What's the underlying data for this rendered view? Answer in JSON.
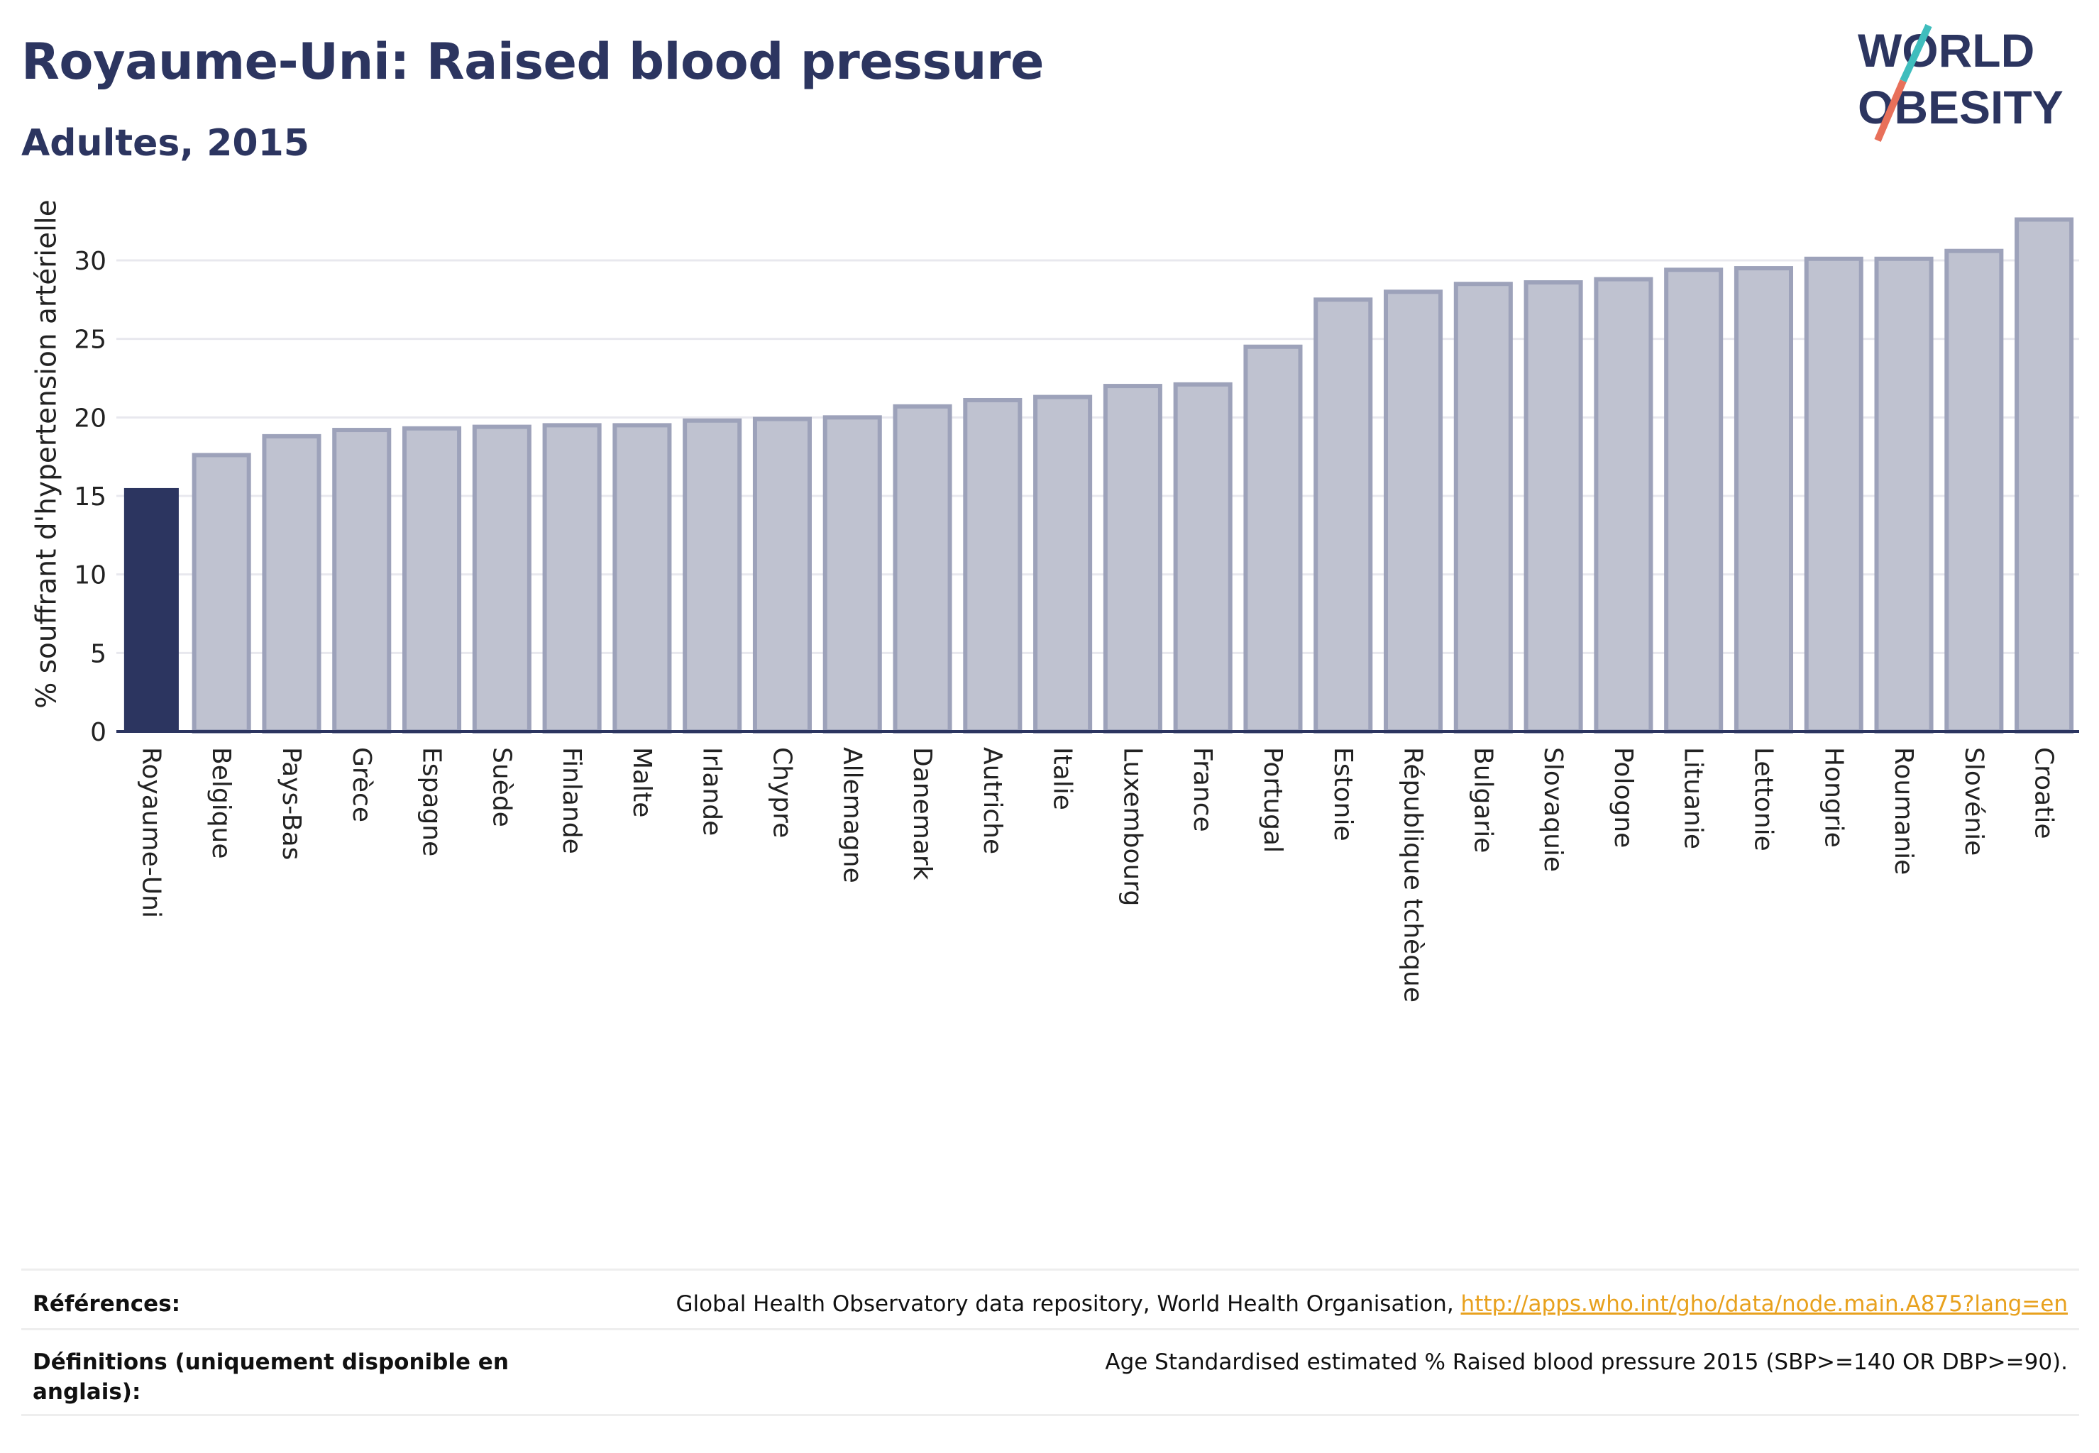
{
  "header": {
    "title": "Royaume-Uni: Raised blood pressure",
    "subtitle": "Adultes, 2015"
  },
  "logo": {
    "line1": "WORLD",
    "line2": "OBESITY"
  },
  "colors": {
    "highlight_bar": "#2c3560",
    "other_bar_fill": "#bfc2d0",
    "other_bar_stroke": "#9da2ba",
    "grid": "#e8e8ee",
    "axis": "#2c3560",
    "logo_teal": "#3fbdbd",
    "logo_coral": "#e8705a"
  },
  "chart_data": {
    "type": "bar",
    "ylabel": "% souffrant d'hypertension artérielle",
    "xlabel": "",
    "ylim": [
      0,
      34
    ],
    "yticks": [
      0,
      5,
      10,
      15,
      20,
      25,
      30
    ],
    "grid": true,
    "highlight": "Royaume-Uni",
    "categories": [
      "Royaume-Uni",
      "Belgique",
      "Pays-Bas",
      "Grèce",
      "Espagne",
      "Suède",
      "Finlande",
      "Malte",
      "Irlande",
      "Chypre",
      "Allemagne",
      "Danemark",
      "Autriche",
      "Italie",
      "Luxembourg",
      "France",
      "Portugal",
      "Estonie",
      "République tchèque",
      "Bulgarie",
      "Slovaquie",
      "Pologne",
      "Lituanie",
      "Lettonie",
      "Hongrie",
      "Roumanie",
      "Slovénie",
      "Croatie"
    ],
    "values": [
      15.5,
      17.6,
      18.8,
      19.2,
      19.3,
      19.4,
      19.5,
      19.5,
      19.8,
      19.9,
      20.0,
      20.7,
      21.1,
      21.3,
      22.0,
      22.1,
      24.5,
      27.5,
      28.0,
      28.5,
      28.6,
      28.8,
      29.4,
      29.5,
      30.1,
      30.1,
      30.6,
      32.6
    ]
  },
  "footer": {
    "references_label": "Références:",
    "references_text": "Global Health Observatory data repository, World Health Organisation,",
    "references_link": "http://apps.who.int/gho/data/node.main.A875?lang=en",
    "definitions_label": "Définitions (uniquement disponible en anglais):",
    "definitions_text": "Age Standardised estimated % Raised blood pressure 2015 (SBP>=140 OR DBP>=90)."
  }
}
